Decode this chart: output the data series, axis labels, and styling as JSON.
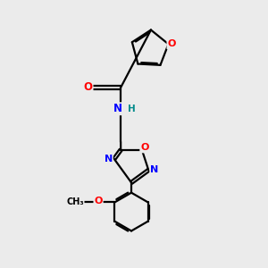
{
  "background_color": "#ebebeb",
  "bond_color": "#000000",
  "atom_colors": {
    "O": "#ff0000",
    "N": "#0000ff",
    "C": "#000000",
    "H": "#008b8b"
  },
  "lw": 1.6,
  "figsize": [
    3.0,
    3.0
  ],
  "dpi": 100
}
